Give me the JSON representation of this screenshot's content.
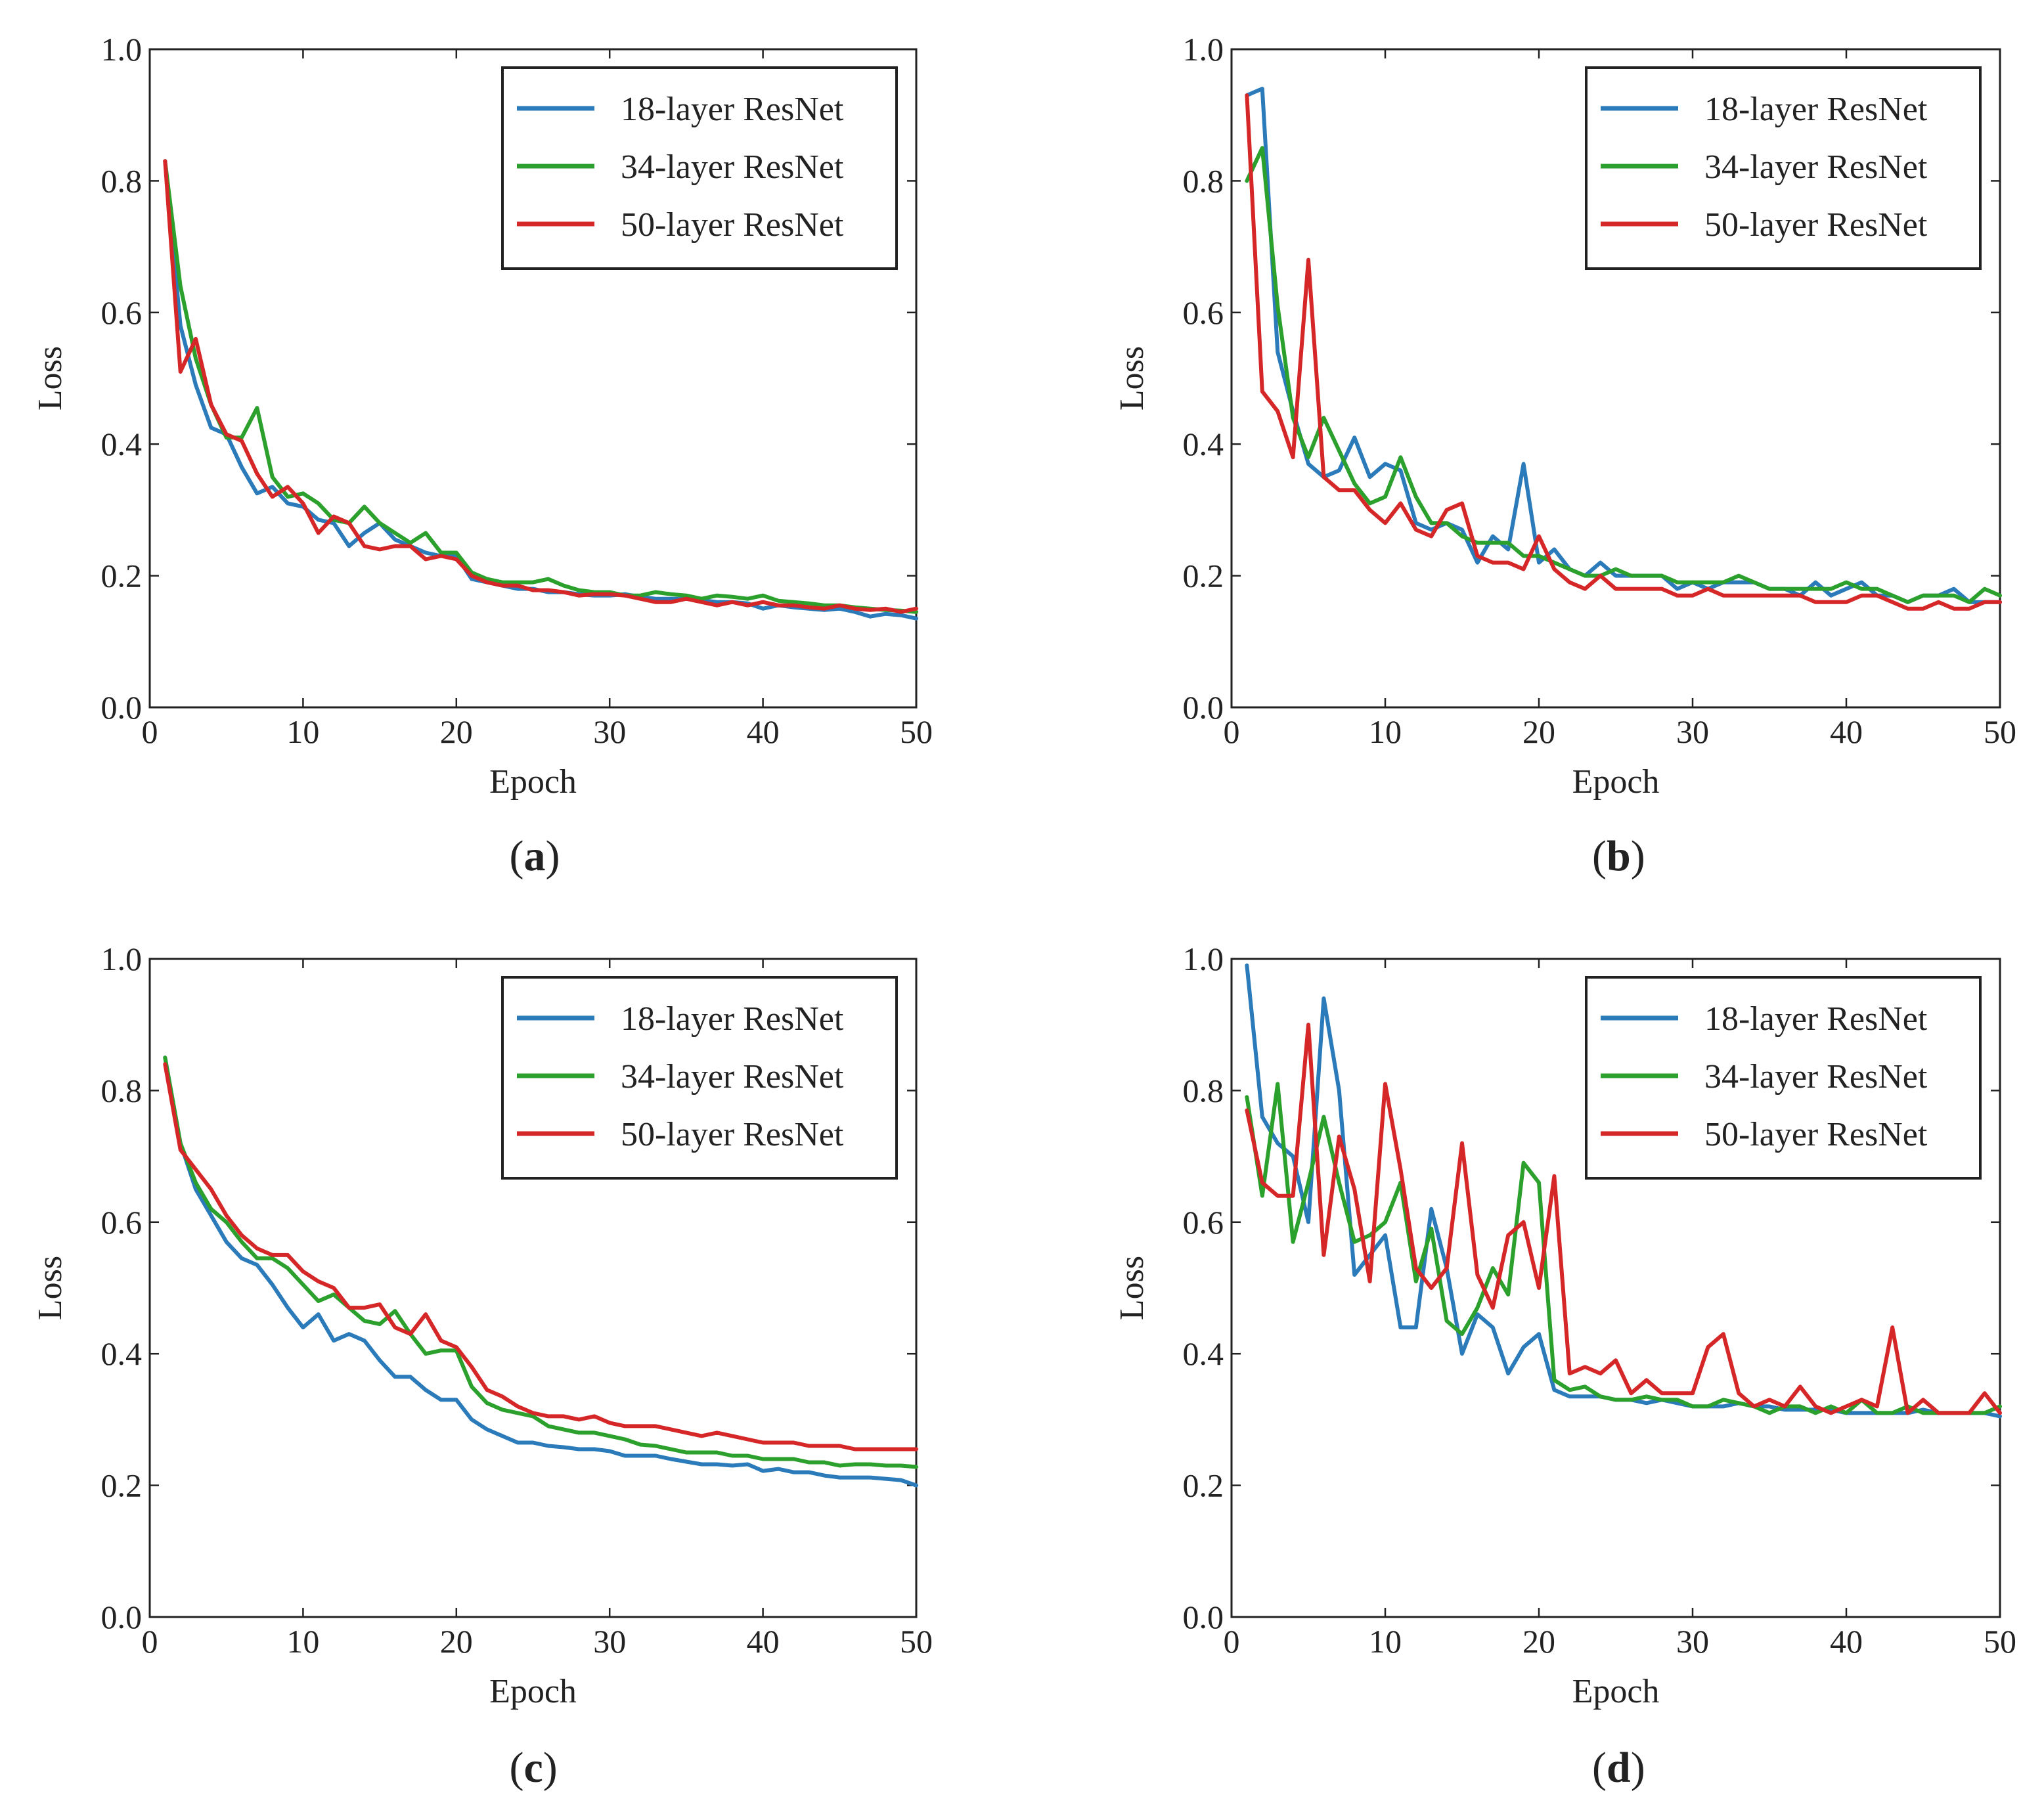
{
  "chart_data": [
    {
      "type": "line",
      "panel": "a",
      "caption": "a",
      "xlabel": "Epoch",
      "ylabel": "Loss",
      "xlim": [
        0,
        50
      ],
      "ylim": [
        0,
        1
      ],
      "xticks": [
        0,
        10,
        20,
        30,
        40,
        50
      ],
      "yticks": [
        0.0,
        0.2,
        0.4,
        0.6,
        0.8,
        1.0
      ],
      "xtick_labels": [
        "0",
        "10",
        "20",
        "30",
        "40",
        "50"
      ],
      "ytick_labels": [
        "0.0",
        "0.2",
        "0.4",
        "0.6",
        "0.8",
        "1.0"
      ],
      "legend_position": "top-right",
      "grid": false,
      "x": [
        1,
        2,
        3,
        4,
        5,
        6,
        7,
        8,
        9,
        10,
        11,
        12,
        13,
        14,
        15,
        16,
        17,
        18,
        19,
        20,
        21,
        22,
        23,
        24,
        25,
        26,
        27,
        28,
        29,
        30,
        31,
        32,
        33,
        34,
        35,
        36,
        37,
        38,
        39,
        40,
        41,
        42,
        43,
        44,
        45,
        46,
        47,
        48,
        49,
        50
      ],
      "series": [
        {
          "name": "18-layer ResNet",
          "color": "#2b7bba",
          "values": [
            0.83,
            0.58,
            0.49,
            0.425,
            0.415,
            0.365,
            0.325,
            0.335,
            0.31,
            0.305,
            0.285,
            0.28,
            0.245,
            0.265,
            0.28,
            0.255,
            0.245,
            0.235,
            0.23,
            0.23,
            0.195,
            0.19,
            0.185,
            0.18,
            0.18,
            0.175,
            0.175,
            0.172,
            0.17,
            0.17,
            0.172,
            0.168,
            0.165,
            0.165,
            0.165,
            0.163,
            0.16,
            0.16,
            0.158,
            0.15,
            0.155,
            0.152,
            0.15,
            0.148,
            0.15,
            0.145,
            0.138,
            0.142,
            0.14,
            0.135
          ]
        },
        {
          "name": "34-layer ResNet",
          "color": "#2ca02c",
          "values": [
            0.83,
            0.64,
            0.53,
            0.46,
            0.41,
            0.41,
            0.455,
            0.35,
            0.32,
            0.325,
            0.31,
            0.285,
            0.28,
            0.305,
            0.28,
            0.265,
            0.25,
            0.265,
            0.235,
            0.235,
            0.205,
            0.195,
            0.19,
            0.19,
            0.19,
            0.195,
            0.185,
            0.178,
            0.175,
            0.175,
            0.17,
            0.17,
            0.175,
            0.172,
            0.17,
            0.165,
            0.17,
            0.168,
            0.165,
            0.17,
            0.162,
            0.16,
            0.158,
            0.155,
            0.155,
            0.152,
            0.15,
            0.148,
            0.147,
            0.145
          ]
        },
        {
          "name": "50-layer ResNet",
          "color": "#d62728",
          "values": [
            0.83,
            0.51,
            0.56,
            0.46,
            0.415,
            0.405,
            0.355,
            0.32,
            0.335,
            0.31,
            0.265,
            0.29,
            0.28,
            0.245,
            0.24,
            0.245,
            0.245,
            0.225,
            0.23,
            0.225,
            0.2,
            0.19,
            0.185,
            0.185,
            0.178,
            0.178,
            0.175,
            0.17,
            0.172,
            0.172,
            0.17,
            0.165,
            0.16,
            0.16,
            0.165,
            0.16,
            0.155,
            0.16,
            0.155,
            0.16,
            0.155,
            0.155,
            0.152,
            0.15,
            0.155,
            0.15,
            0.148,
            0.15,
            0.145,
            0.15
          ]
        }
      ]
    },
    {
      "type": "line",
      "panel": "b",
      "caption": "b",
      "xlabel": "Epoch",
      "ylabel": "Loss",
      "xlim": [
        0,
        50
      ],
      "ylim": [
        0,
        1
      ],
      "xticks": [
        0,
        10,
        20,
        30,
        40,
        50
      ],
      "yticks": [
        0.0,
        0.2,
        0.4,
        0.6,
        0.8,
        1.0
      ],
      "xtick_labels": [
        "0",
        "10",
        "20",
        "30",
        "40",
        "50"
      ],
      "ytick_labels": [
        "0.0",
        "0.2",
        "0.4",
        "0.6",
        "0.8",
        "1.0"
      ],
      "legend_position": "top-right",
      "grid": false,
      "x": [
        1,
        2,
        3,
        4,
        5,
        6,
        7,
        8,
        9,
        10,
        11,
        12,
        13,
        14,
        15,
        16,
        17,
        18,
        19,
        20,
        21,
        22,
        23,
        24,
        25,
        26,
        27,
        28,
        29,
        30,
        31,
        32,
        33,
        34,
        35,
        36,
        37,
        38,
        39,
        40,
        41,
        42,
        43,
        44,
        45,
        46,
        47,
        48,
        49,
        50
      ],
      "series": [
        {
          "name": "18-layer ResNet",
          "color": "#2b7bba",
          "values": [
            0.93,
            0.94,
            0.54,
            0.45,
            0.37,
            0.35,
            0.36,
            0.41,
            0.35,
            0.37,
            0.36,
            0.28,
            0.27,
            0.28,
            0.27,
            0.22,
            0.26,
            0.24,
            0.37,
            0.22,
            0.24,
            0.21,
            0.2,
            0.22,
            0.2,
            0.2,
            0.2,
            0.2,
            0.18,
            0.19,
            0.18,
            0.19,
            0.19,
            0.19,
            0.18,
            0.18,
            0.17,
            0.19,
            0.17,
            0.18,
            0.19,
            0.17,
            0.17,
            0.16,
            0.17,
            0.17,
            0.18,
            0.16,
            0.16,
            0.16
          ]
        },
        {
          "name": "34-layer ResNet",
          "color": "#2ca02c",
          "values": [
            0.8,
            0.85,
            0.61,
            0.44,
            0.38,
            0.44,
            0.39,
            0.34,
            0.31,
            0.32,
            0.38,
            0.32,
            0.28,
            0.28,
            0.26,
            0.25,
            0.25,
            0.25,
            0.23,
            0.23,
            0.22,
            0.21,
            0.2,
            0.2,
            0.21,
            0.2,
            0.2,
            0.2,
            0.19,
            0.19,
            0.19,
            0.19,
            0.2,
            0.19,
            0.18,
            0.18,
            0.18,
            0.18,
            0.18,
            0.19,
            0.18,
            0.18,
            0.17,
            0.16,
            0.17,
            0.17,
            0.17,
            0.16,
            0.18,
            0.17
          ]
        },
        {
          "name": "50-layer ResNet",
          "color": "#d62728",
          "values": [
            0.93,
            0.48,
            0.45,
            0.38,
            0.68,
            0.35,
            0.33,
            0.33,
            0.3,
            0.28,
            0.31,
            0.27,
            0.26,
            0.3,
            0.31,
            0.23,
            0.22,
            0.22,
            0.21,
            0.26,
            0.21,
            0.19,
            0.18,
            0.2,
            0.18,
            0.18,
            0.18,
            0.18,
            0.17,
            0.17,
            0.18,
            0.17,
            0.17,
            0.17,
            0.17,
            0.17,
            0.17,
            0.16,
            0.16,
            0.16,
            0.17,
            0.17,
            0.16,
            0.15,
            0.15,
            0.16,
            0.15,
            0.15,
            0.16,
            0.16
          ]
        }
      ]
    },
    {
      "type": "line",
      "panel": "c",
      "caption": "c",
      "xlabel": "Epoch",
      "ylabel": "Loss",
      "xlim": [
        0,
        50
      ],
      "ylim": [
        0,
        1
      ],
      "xticks": [
        0,
        10,
        20,
        30,
        40,
        50
      ],
      "yticks": [
        0.0,
        0.2,
        0.4,
        0.6,
        0.8,
        1.0
      ],
      "xtick_labels": [
        "0",
        "10",
        "20",
        "30",
        "40",
        "50"
      ],
      "ytick_labels": [
        "0.0",
        "0.2",
        "0.4",
        "0.6",
        "0.8",
        "1.0"
      ],
      "legend_position": "top-right",
      "grid": false,
      "x": [
        1,
        2,
        3,
        4,
        5,
        6,
        7,
        8,
        9,
        10,
        11,
        12,
        13,
        14,
        15,
        16,
        17,
        18,
        19,
        20,
        21,
        22,
        23,
        24,
        25,
        26,
        27,
        28,
        29,
        30,
        31,
        32,
        33,
        34,
        35,
        36,
        37,
        38,
        39,
        40,
        41,
        42,
        43,
        44,
        45,
        46,
        47,
        48,
        49,
        50
      ],
      "series": [
        {
          "name": "18-layer ResNet",
          "color": "#2b7bba",
          "values": [
            0.85,
            0.72,
            0.65,
            0.61,
            0.57,
            0.545,
            0.535,
            0.505,
            0.47,
            0.44,
            0.46,
            0.42,
            0.43,
            0.42,
            0.39,
            0.365,
            0.365,
            0.345,
            0.33,
            0.33,
            0.3,
            0.285,
            0.275,
            0.265,
            0.265,
            0.26,
            0.258,
            0.255,
            0.255,
            0.252,
            0.245,
            0.245,
            0.245,
            0.24,
            0.236,
            0.232,
            0.232,
            0.23,
            0.232,
            0.222,
            0.225,
            0.22,
            0.22,
            0.215,
            0.212,
            0.212,
            0.212,
            0.21,
            0.208,
            0.2
          ]
        },
        {
          "name": "34-layer ResNet",
          "color": "#2ca02c",
          "values": [
            0.85,
            0.72,
            0.66,
            0.62,
            0.6,
            0.57,
            0.545,
            0.545,
            0.53,
            0.505,
            0.48,
            0.49,
            0.47,
            0.45,
            0.445,
            0.465,
            0.43,
            0.4,
            0.405,
            0.405,
            0.35,
            0.325,
            0.315,
            0.31,
            0.305,
            0.29,
            0.285,
            0.28,
            0.28,
            0.275,
            0.27,
            0.262,
            0.26,
            0.255,
            0.25,
            0.25,
            0.25,
            0.245,
            0.245,
            0.24,
            0.24,
            0.24,
            0.235,
            0.235,
            0.23,
            0.232,
            0.232,
            0.23,
            0.23,
            0.228
          ]
        },
        {
          "name": "50-layer ResNet",
          "color": "#d62728",
          "values": [
            0.84,
            0.71,
            0.68,
            0.65,
            0.61,
            0.58,
            0.56,
            0.55,
            0.55,
            0.525,
            0.51,
            0.5,
            0.47,
            0.47,
            0.475,
            0.44,
            0.43,
            0.46,
            0.42,
            0.41,
            0.38,
            0.345,
            0.335,
            0.32,
            0.31,
            0.305,
            0.305,
            0.3,
            0.305,
            0.295,
            0.29,
            0.29,
            0.29,
            0.285,
            0.28,
            0.275,
            0.28,
            0.275,
            0.27,
            0.265,
            0.265,
            0.265,
            0.26,
            0.26,
            0.26,
            0.255,
            0.255,
            0.255,
            0.255,
            0.255
          ]
        }
      ]
    },
    {
      "type": "line",
      "panel": "d",
      "caption": "d",
      "xlabel": "Epoch",
      "ylabel": "Loss",
      "xlim": [
        0,
        50
      ],
      "ylim": [
        0,
        1
      ],
      "xticks": [
        0,
        10,
        20,
        30,
        40,
        50
      ],
      "yticks": [
        0.0,
        0.2,
        0.4,
        0.6,
        0.8,
        1.0
      ],
      "xtick_labels": [
        "0",
        "10",
        "20",
        "30",
        "40",
        "50"
      ],
      "ytick_labels": [
        "0.0",
        "0.2",
        "0.4",
        "0.6",
        "0.8",
        "1.0"
      ],
      "legend_position": "top-right",
      "grid": false,
      "x": [
        1,
        2,
        3,
        4,
        5,
        6,
        7,
        8,
        9,
        10,
        11,
        12,
        13,
        14,
        15,
        16,
        17,
        18,
        19,
        20,
        21,
        22,
        23,
        24,
        25,
        26,
        27,
        28,
        29,
        30,
        31,
        32,
        33,
        34,
        35,
        36,
        37,
        38,
        39,
        40,
        41,
        42,
        43,
        44,
        45,
        46,
        47,
        48,
        49,
        50
      ],
      "series": [
        {
          "name": "18-layer ResNet",
          "color": "#2b7bba",
          "values": [
            0.99,
            0.76,
            0.72,
            0.7,
            0.6,
            0.94,
            0.8,
            0.52,
            0.55,
            0.58,
            0.44,
            0.44,
            0.62,
            0.53,
            0.4,
            0.46,
            0.44,
            0.37,
            0.41,
            0.43,
            0.345,
            0.335,
            0.335,
            0.335,
            0.33,
            0.33,
            0.325,
            0.33,
            0.325,
            0.32,
            0.32,
            0.32,
            0.325,
            0.32,
            0.32,
            0.315,
            0.315,
            0.315,
            0.315,
            0.31,
            0.31,
            0.31,
            0.31,
            0.31,
            0.315,
            0.31,
            0.31,
            0.31,
            0.31,
            0.305
          ]
        },
        {
          "name": "34-layer ResNet",
          "color": "#2ca02c",
          "values": [
            0.79,
            0.64,
            0.81,
            0.57,
            0.66,
            0.76,
            0.66,
            0.57,
            0.58,
            0.6,
            0.66,
            0.51,
            0.59,
            0.45,
            0.43,
            0.47,
            0.53,
            0.49,
            0.69,
            0.66,
            0.36,
            0.345,
            0.35,
            0.335,
            0.33,
            0.33,
            0.335,
            0.33,
            0.33,
            0.32,
            0.32,
            0.33,
            0.325,
            0.32,
            0.31,
            0.32,
            0.32,
            0.31,
            0.32,
            0.31,
            0.33,
            0.31,
            0.31,
            0.32,
            0.31,
            0.31,
            0.31,
            0.31,
            0.31,
            0.32
          ]
        },
        {
          "name": "50-layer ResNet",
          "color": "#d62728",
          "values": [
            0.77,
            0.66,
            0.64,
            0.64,
            0.9,
            0.55,
            0.73,
            0.65,
            0.51,
            0.81,
            0.68,
            0.53,
            0.5,
            0.53,
            0.72,
            0.52,
            0.47,
            0.58,
            0.6,
            0.5,
            0.67,
            0.37,
            0.38,
            0.37,
            0.39,
            0.34,
            0.36,
            0.34,
            0.34,
            0.34,
            0.41,
            0.43,
            0.34,
            0.32,
            0.33,
            0.32,
            0.35,
            0.32,
            0.31,
            0.32,
            0.33,
            0.32,
            0.44,
            0.31,
            0.33,
            0.31,
            0.31,
            0.31,
            0.34,
            0.31
          ]
        }
      ]
    }
  ]
}
